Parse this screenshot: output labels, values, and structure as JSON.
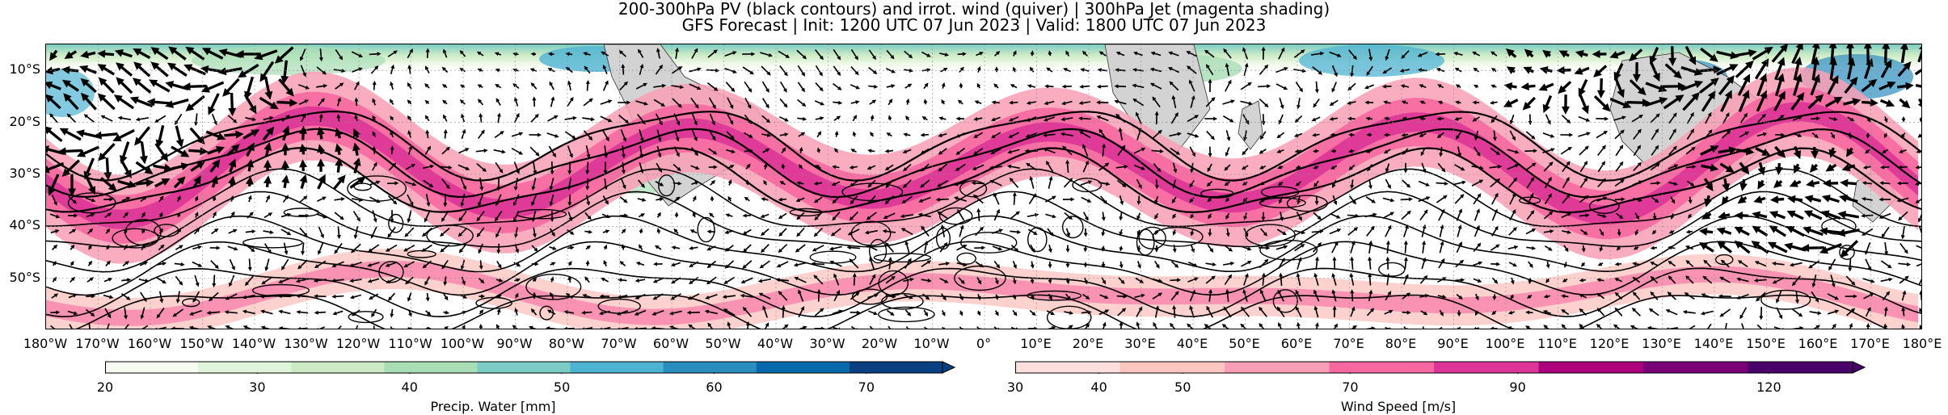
{
  "title": {
    "line1": "200-300hPa PV (black contours) and irrot. wind (quiver) | 300hPa Jet (magenta shading)",
    "line2": "GFS Forecast | Init: 1200 UTC 07 Jun 2023 | Valid: 1800 UTC 07 Jun 2023"
  },
  "map": {
    "lat_labels": [
      "10°S",
      "20°S",
      "30°S",
      "40°S",
      "50°S"
    ],
    "lat_values": [
      -10,
      -20,
      -30,
      -40,
      -50
    ],
    "lat_range": [
      -5,
      -60
    ],
    "lon_range": [
      -180,
      180
    ],
    "lon_labels": [
      "180°W",
      "170°W",
      "160°W",
      "150°W",
      "140°W",
      "130°W",
      "120°W",
      "110°W",
      "100°W",
      "90°W",
      "80°W",
      "70°W",
      "60°W",
      "50°W",
      "40°W",
      "30°W",
      "20°W",
      "10°W",
      "0°",
      "10°E",
      "20°E",
      "30°E",
      "40°E",
      "50°E",
      "60°E",
      "70°E",
      "80°E",
      "90°E",
      "100°E",
      "110°E",
      "120°E",
      "130°E",
      "140°E",
      "150°E",
      "160°E",
      "170°E",
      "180°E"
    ],
    "land_color": "#d3d3d3",
    "contour_color": "#000000"
  },
  "colorbars": {
    "precip": {
      "label": "Precip. Water [mm]",
      "ticks": [
        "20",
        "30",
        "40",
        "50",
        "60",
        "70"
      ],
      "tick_values": [
        20,
        30,
        40,
        50,
        60,
        70
      ],
      "range": [
        20,
        75
      ],
      "colors": [
        "#f7fcf0",
        "#e0f3db",
        "#ccebc5",
        "#a8ddb5",
        "#7bccc4",
        "#4eb3d3",
        "#2b8cbe",
        "#0868ac",
        "#084081"
      ]
    },
    "wind": {
      "label": "Wind Speed [m/s]",
      "ticks": [
        "30",
        "40",
        "50",
        "70",
        "90",
        "120"
      ],
      "tick_values": [
        30,
        40,
        50,
        70,
        90,
        120
      ],
      "range": [
        30,
        130
      ],
      "colors": [
        "#fde0dd",
        "#fcc5c0",
        "#fa9fb5",
        "#f768a1",
        "#dd3497",
        "#ae017e",
        "#7a0177",
        "#49006a"
      ]
    }
  }
}
